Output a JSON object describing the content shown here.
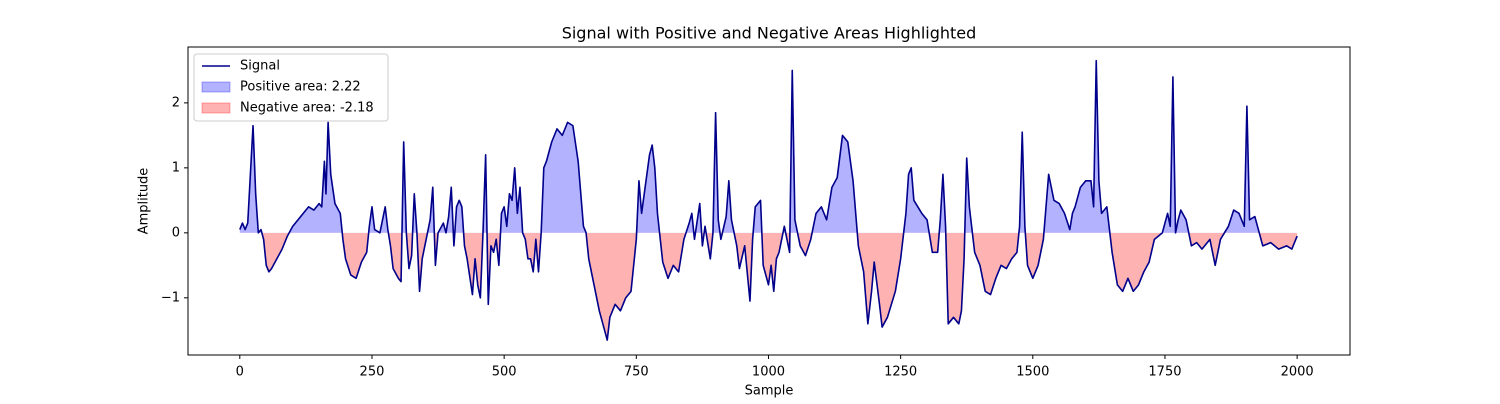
{
  "chart_data": {
    "type": "line",
    "title": "Signal with Positive and Negative Areas Highlighted",
    "xlabel": "Sample",
    "ylabel": "Amplitude",
    "x": [
      0,
      5,
      10,
      15,
      20,
      25,
      30,
      35,
      40,
      45,
      50,
      55,
      60,
      70,
      80,
      90,
      100,
      110,
      120,
      130,
      140,
      150,
      155,
      160,
      163,
      167,
      172,
      180,
      190,
      195,
      200,
      210,
      220,
      230,
      240,
      245,
      250,
      255,
      265,
      275,
      280,
      285,
      290,
      300,
      305,
      310,
      315,
      320,
      325,
      330,
      335,
      340,
      345,
      355,
      360,
      365,
      370,
      375,
      385,
      390,
      395,
      400,
      405,
      410,
      415,
      420,
      425,
      430,
      440,
      445,
      450,
      455,
      460,
      465,
      470,
      475,
      480,
      485,
      490,
      495,
      500,
      505,
      510,
      515,
      520,
      525,
      530,
      535,
      540,
      545,
      550,
      555,
      560,
      565,
      570,
      575,
      580,
      590,
      600,
      610,
      620,
      630,
      640,
      650,
      655,
      660,
      670,
      680,
      690,
      695,
      700,
      710,
      720,
      730,
      740,
      750,
      755,
      760,
      765,
      775,
      780,
      785,
      790,
      800,
      810,
      820,
      830,
      840,
      850,
      855,
      860,
      870,
      875,
      880,
      890,
      895,
      900,
      905,
      910,
      920,
      925,
      930,
      940,
      945,
      955,
      965,
      970,
      975,
      985,
      990,
      1000,
      1005,
      1010,
      1015,
      1020,
      1030,
      1040,
      1045,
      1050,
      1060,
      1070,
      1080,
      1090,
      1100,
      1110,
      1120,
      1130,
      1140,
      1150,
      1160,
      1165,
      1170,
      1180,
      1188,
      1195,
      1200,
      1210,
      1215,
      1225,
      1240,
      1250,
      1260,
      1265,
      1270,
      1275,
      1290,
      1300,
      1310,
      1320,
      1325,
      1330,
      1335,
      1340,
      1350,
      1360,
      1365,
      1370,
      1375,
      1380,
      1390,
      1400,
      1410,
      1420,
      1430,
      1440,
      1450,
      1460,
      1470,
      1475,
      1480,
      1485,
      1490,
      1500,
      1510,
      1520,
      1530,
      1540,
      1550,
      1560,
      1570,
      1575,
      1580,
      1590,
      1600,
      1610,
      1615,
      1620,
      1625,
      1630,
      1640,
      1650,
      1660,
      1670,
      1680,
      1690,
      1700,
      1710,
      1720,
      1730,
      1745,
      1755,
      1760,
      1765,
      1770,
      1775,
      1780,
      1790,
      1800,
      1810,
      1820,
      1835,
      1845,
      1855,
      1870,
      1880,
      1890,
      1900,
      1905,
      1910,
      1920,
      1925,
      1935,
      1950,
      1965,
      1980,
      1990,
      2000
    ],
    "series": [
      {
        "name": "Signal",
        "color": "#00008b",
        "values": [
          0.05,
          0.15,
          0.05,
          0.15,
          0.9,
          1.65,
          0.6,
          0.0,
          0.05,
          -0.1,
          -0.5,
          -0.6,
          -0.55,
          -0.4,
          -0.25,
          -0.05,
          0.1,
          0.2,
          0.3,
          0.4,
          0.35,
          0.45,
          0.4,
          1.1,
          0.6,
          1.7,
          0.9,
          0.45,
          0.3,
          -0.1,
          -0.4,
          -0.65,
          -0.7,
          -0.45,
          -0.3,
          0.1,
          0.4,
          0.05,
          0.0,
          0.4,
          0.05,
          -0.2,
          -0.55,
          -0.7,
          -0.75,
          1.4,
          0.0,
          -0.55,
          -0.35,
          0.6,
          0.0,
          -0.9,
          -0.4,
          0.0,
          0.2,
          0.7,
          -0.5,
          0.0,
          0.15,
          0.0,
          0.25,
          0.7,
          -0.2,
          0.4,
          0.5,
          0.4,
          -0.2,
          -0.4,
          -0.95,
          -0.4,
          -0.8,
          -1.0,
          0.0,
          1.2,
          -1.1,
          -0.2,
          -0.3,
          -0.1,
          -0.5,
          0.3,
          0.4,
          0.1,
          0.6,
          0.5,
          1.0,
          0.3,
          0.7,
          0.0,
          -0.1,
          -0.4,
          -0.4,
          -0.6,
          -0.1,
          -0.6,
          0.0,
          1.0,
          1.1,
          1.4,
          1.6,
          1.5,
          1.7,
          1.65,
          1.1,
          0.1,
          0.0,
          -0.4,
          -0.8,
          -1.2,
          -1.5,
          -1.65,
          -1.3,
          -1.1,
          -1.2,
          -1.0,
          -0.9,
          -0.1,
          0.8,
          0.3,
          0.6,
          1.2,
          1.35,
          1.0,
          0.3,
          -0.45,
          -0.7,
          -0.5,
          -0.6,
          -0.1,
          0.15,
          0.3,
          -0.1,
          0.45,
          -0.2,
          0.1,
          -0.4,
          0.0,
          1.85,
          0.2,
          -0.1,
          0.25,
          0.8,
          0.2,
          -0.2,
          -0.55,
          -0.2,
          -1.05,
          -0.1,
          0.4,
          0.5,
          -0.5,
          -0.8,
          -0.5,
          -0.9,
          -0.4,
          -0.3,
          0.1,
          -0.3,
          2.5,
          0.2,
          -0.2,
          -0.35,
          -0.1,
          0.3,
          0.4,
          0.2,
          0.7,
          0.85,
          1.5,
          1.4,
          0.8,
          0.3,
          -0.2,
          -0.6,
          -1.4,
          -0.9,
          -0.45,
          -1.1,
          -1.45,
          -1.3,
          -0.9,
          -0.4,
          0.3,
          0.9,
          1.0,
          0.5,
          0.3,
          0.2,
          -0.3,
          -0.3,
          0.2,
          0.9,
          0.1,
          -1.4,
          -1.3,
          -1.4,
          -1.2,
          -0.4,
          1.15,
          0.4,
          -0.3,
          -0.5,
          -0.9,
          -0.95,
          -0.7,
          -0.5,
          -0.55,
          -0.4,
          -0.3,
          0.1,
          1.55,
          0.1,
          -0.5,
          -0.7,
          -0.5,
          -0.1,
          0.9,
          0.5,
          0.45,
          0.3,
          0.05,
          0.3,
          0.4,
          0.7,
          0.8,
          0.8,
          0.4,
          2.65,
          0.8,
          0.3,
          0.4,
          -0.3,
          -0.8,
          -0.9,
          -0.7,
          -0.9,
          -0.8,
          -0.6,
          -0.45,
          -0.1,
          0.0,
          0.3,
          0.1,
          2.4,
          0.0,
          0.2,
          0.35,
          0.2,
          -0.2,
          -0.15,
          -0.25,
          -0.1,
          -0.5,
          -0.1,
          0.1,
          0.35,
          0.3,
          0.1,
          1.95,
          0.2,
          0.25,
          0.1,
          -0.2,
          -0.15,
          -0.25,
          -0.2,
          -0.25,
          -0.05
        ]
      }
    ],
    "fills": [
      {
        "name": "Positive area: 2.22",
        "color": "#0000ff",
        "alpha": 0.3
      },
      {
        "name": "Negative area: -2.18",
        "color": "#ff0000",
        "alpha": 0.3
      }
    ],
    "xlim": [
      -98,
      2100
    ],
    "ylim": [
      -1.88,
      2.86
    ],
    "xticks": [
      0,
      250,
      500,
      750,
      1000,
      1250,
      1500,
      1750,
      2000
    ],
    "yticks": [
      {
        "value": -1,
        "label": "−1"
      },
      0,
      1,
      2
    ],
    "legend": "upper left"
  }
}
